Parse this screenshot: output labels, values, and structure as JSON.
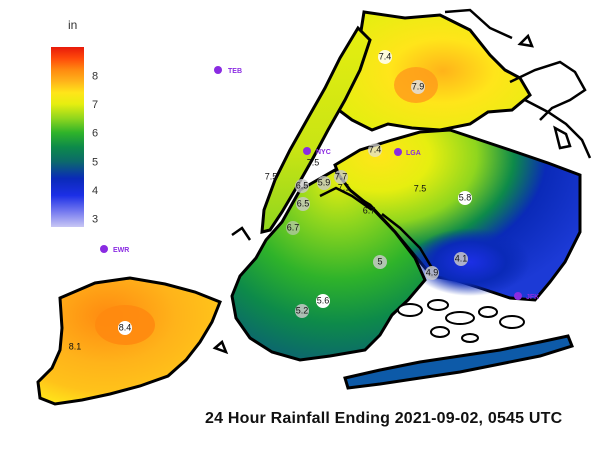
{
  "title": "24 Hour Rainfall Ending 2021-09-02, 0545 UTC",
  "colorbar": {
    "unit": "in",
    "ticks": [
      "8",
      "7",
      "6",
      "5",
      "4",
      "3"
    ],
    "range": [
      2.7,
      9.0
    ],
    "stops": [
      {
        "v": 2.7,
        "color": "#c8c6f4"
      },
      {
        "v": 3.2,
        "color": "#7b7ff0"
      },
      {
        "v": 3.8,
        "color": "#1c2fe6"
      },
      {
        "v": 4.4,
        "color": "#0a2ab8"
      },
      {
        "v": 5.0,
        "color": "#0c6a6a"
      },
      {
        "v": 5.5,
        "color": "#0d8a4a"
      },
      {
        "v": 6.0,
        "color": "#2fb32a"
      },
      {
        "v": 6.5,
        "color": "#8fd61e"
      },
      {
        "v": 7.0,
        "color": "#e6ee10"
      },
      {
        "v": 7.4,
        "color": "#ffe51a"
      },
      {
        "v": 7.8,
        "color": "#ffb31a"
      },
      {
        "v": 8.2,
        "color": "#ff8a10"
      },
      {
        "v": 8.6,
        "color": "#ff4a0a"
      },
      {
        "v": 9.0,
        "color": "#e81a0a"
      }
    ]
  },
  "stations": [
    {
      "name": "TEB"
    },
    {
      "name": "NYC"
    },
    {
      "name": "LGA"
    },
    {
      "name": "EWR"
    },
    {
      "name": "JFK"
    }
  ],
  "gauge_values": [
    "7.4",
    "7.9",
    "7.4",
    "7.5",
    "7.5",
    "6.5",
    "5.9",
    "7.7",
    "7.1",
    "7.5",
    "6.5",
    "6.7",
    "6.7",
    "5.8",
    "5",
    "4.9",
    "4.1",
    "5.6",
    "5.2",
    "8.4",
    "8.1"
  ]
}
